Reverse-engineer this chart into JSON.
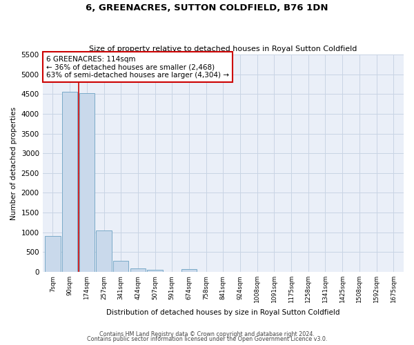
{
  "title": "6, GREENACRES, SUTTON COLDFIELD, B76 1DN",
  "subtitle": "Size of property relative to detached houses in Royal Sutton Coldfield",
  "xlabel": "Distribution of detached houses by size in Royal Sutton Coldfield",
  "ylabel": "Number of detached properties",
  "footer_line1": "Contains HM Land Registry data © Crown copyright and database right 2024.",
  "footer_line2": "Contains public sector information licensed under the Open Government Licence v3.0.",
  "categories": [
    "7sqm",
    "90sqm",
    "174sqm",
    "257sqm",
    "341sqm",
    "424sqm",
    "507sqm",
    "591sqm",
    "674sqm",
    "758sqm",
    "841sqm",
    "924sqm",
    "1008sqm",
    "1091sqm",
    "1175sqm",
    "1258sqm",
    "1341sqm",
    "1425sqm",
    "1508sqm",
    "1592sqm",
    "1675sqm"
  ],
  "values": [
    900,
    4550,
    4530,
    1050,
    280,
    80,
    55,
    0,
    60,
    0,
    0,
    0,
    0,
    0,
    0,
    0,
    0,
    0,
    0,
    0,
    0
  ],
  "bar_color": "#c9d9eb",
  "bar_edge_color": "#7aaac8",
  "red_line_color": "#cc0000",
  "annotation_box_edge_color": "#cc0000",
  "ylim": [
    0,
    5500
  ],
  "yticks": [
    0,
    500,
    1000,
    1500,
    2000,
    2500,
    3000,
    3500,
    4000,
    4500,
    5000,
    5500
  ],
  "grid_color": "#c8d4e4",
  "background_color": "#eaeff8"
}
